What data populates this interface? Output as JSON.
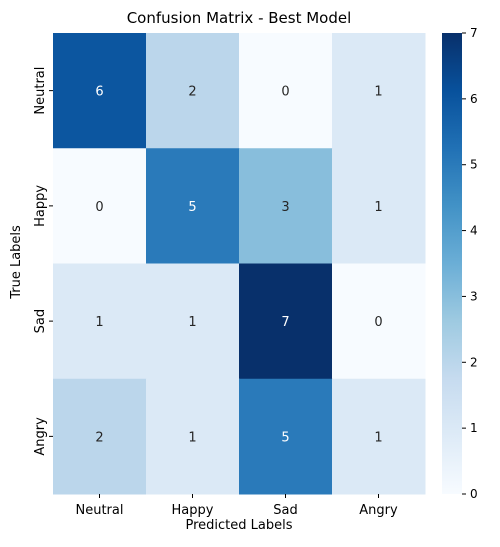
{
  "chart_data": {
    "type": "heatmap",
    "title": "Confusion Matrix - Best Model",
    "xlabel": "Predicted Labels",
    "ylabel": "True Labels",
    "x_categories": [
      "Neutral",
      "Happy",
      "Sad",
      "Angry"
    ],
    "y_categories": [
      "Neutral",
      "Happy",
      "Sad",
      "Angry"
    ],
    "values": [
      [
        6,
        2,
        0,
        1
      ],
      [
        0,
        5,
        3,
        1
      ],
      [
        1,
        1,
        7,
        0
      ],
      [
        2,
        1,
        5,
        1
      ]
    ],
    "colormap": "Blues",
    "colorbar": {
      "min": 0,
      "max": 7,
      "ticks": [
        0,
        1,
        2,
        3,
        4,
        5,
        6,
        7
      ]
    },
    "annotations": true,
    "grid": false
  }
}
